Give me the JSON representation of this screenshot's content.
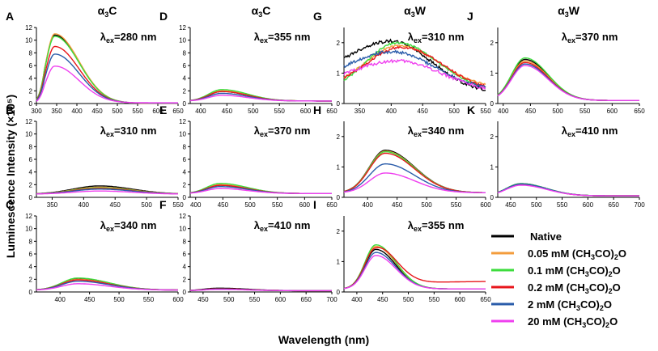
{
  "chart_data": {
    "type": "line",
    "xlabel": "Wavelength (nm)",
    "ylabel": "Luminescence Intensity (×10⁵)",
    "series_names": [
      "Native",
      "0.05 mM (CH3CO)2O",
      "0.1 mM (CH3CO)2O",
      "0.2 mM (CH3CO)2O",
      "2 mM (CH3CO)2O",
      "20 mM (CH3CO)2O"
    ],
    "series_colors": [
      "#000000",
      "#f39c3c",
      "#3ddc3d",
      "#e8161b",
      "#2a5caa",
      "#ef3fef"
    ],
    "column_titles": [
      {
        "base": "α",
        "sub": "3",
        "tail": "C"
      },
      {
        "base": "α",
        "sub": "3",
        "tail": "C"
      },
      {
        "base": "α",
        "sub": "3",
        "tail": "W"
      },
      {
        "base": "α",
        "sub": "3",
        "tail": "W"
      }
    ],
    "panels": [
      {
        "id": "A",
        "col": 0,
        "row": 0,
        "ex": "280",
        "xlim": [
          300,
          650
        ],
        "xticks": [
          300,
          350,
          400,
          450,
          500,
          550,
          600,
          650
        ],
        "ylim": [
          0,
          12
        ],
        "yticks": [
          0,
          2,
          4,
          6,
          8,
          10,
          12
        ],
        "shape": {
          "type": "gauss",
          "peak": 345,
          "wl": 30,
          "wr": 85
        },
        "amps": [
          10.8,
          11.0,
          10.6,
          9.0,
          7.8,
          5.9
        ],
        "tail": [
          0.05,
          0.05,
          0.05,
          0.05,
          0.08,
          0.12
        ]
      },
      {
        "id": "B",
        "col": 0,
        "row": 1,
        "ex": "310",
        "xlim": [
          325,
          550
        ],
        "xticks": [
          350,
          400,
          450,
          500,
          550
        ],
        "ylim": [
          0,
          12
        ],
        "yticks": [
          0,
          2,
          4,
          6,
          8,
          10,
          12
        ],
        "shape": {
          "type": "gauss",
          "peak": 425,
          "wl": 60,
          "wr": 75,
          "base": 0.5
        },
        "amps": [
          1.8,
          1.6,
          1.5,
          1.4,
          1.3,
          1.0
        ],
        "tail": [
          0,
          0,
          0,
          0,
          0,
          0
        ]
      },
      {
        "id": "C",
        "col": 0,
        "row": 2,
        "ex": "340",
        "xlim": [
          360,
          600
        ],
        "xticks": [
          400,
          450,
          500,
          550,
          600
        ],
        "ylim": [
          0,
          12
        ],
        "yticks": [
          0,
          2,
          4,
          6,
          8,
          10,
          12
        ],
        "shape": {
          "type": "gauss",
          "peak": 430,
          "wl": 38,
          "wr": 75,
          "base": 0.3
        },
        "amps": [
          2.1,
          2.0,
          2.2,
          1.9,
          1.7,
          1.3
        ],
        "tail": [
          0,
          0,
          0,
          0,
          0,
          0
        ]
      },
      {
        "id": "D",
        "col": 1,
        "row": 0,
        "ex": "355",
        "xlim": [
          380,
          650
        ],
        "xticks": [
          400,
          450,
          500,
          550,
          600,
          650
        ],
        "ylim": [
          0,
          12
        ],
        "yticks": [
          0,
          2,
          4,
          6,
          8,
          10,
          12
        ],
        "shape": {
          "type": "gauss",
          "peak": 440,
          "wl": 35,
          "wr": 70,
          "base": 0.4
        },
        "amps": [
          1.9,
          2.0,
          2.2,
          1.9,
          1.6,
          1.3
        ],
        "tail": [
          0,
          0,
          0,
          0,
          0,
          0
        ]
      },
      {
        "id": "E",
        "col": 1,
        "row": 1,
        "ex": "370",
        "xlim": [
          390,
          650
        ],
        "xticks": [
          400,
          450,
          500,
          550,
          600,
          650
        ],
        "ylim": [
          0,
          12
        ],
        "yticks": [
          0,
          2,
          4,
          6,
          8,
          10,
          12
        ],
        "shape": {
          "type": "gauss",
          "peak": 445,
          "wl": 35,
          "wr": 70,
          "base": 0.6
        },
        "amps": [
          1.9,
          2.0,
          2.2,
          1.9,
          1.7,
          1.4
        ],
        "tail": [
          0,
          0,
          0,
          0,
          0,
          0
        ]
      },
      {
        "id": "F",
        "col": 1,
        "row": 2,
        "ex": "410",
        "xlim": [
          425,
          700
        ],
        "xticks": [
          450,
          500,
          550,
          600,
          650,
          700
        ],
        "ylim": [
          0,
          12
        ],
        "yticks": [
          0,
          2,
          4,
          6,
          8,
          10,
          12
        ],
        "shape": {
          "type": "gauss",
          "peak": 480,
          "wl": 40,
          "wr": 80,
          "base": 0.2
        },
        "amps": [
          0.6,
          0.45,
          0.45,
          0.5,
          0.45,
          0.4
        ],
        "tail": [
          0,
          0,
          0,
          0,
          0,
          0
        ]
      },
      {
        "id": "G",
        "col": 2,
        "row": 0,
        "ex": "310",
        "xlim": [
          325,
          550
        ],
        "xticks": [
          350,
          400,
          450,
          500,
          550
        ],
        "ylim": [
          0,
          2.5
        ],
        "yticks": [
          0,
          1,
          2
        ],
        "shape": {
          "type": "broad"
        },
        "params": [
          {
            "a": 2.05,
            "p": 400,
            "wl": 120,
            "wr": 90,
            "b": 0.3,
            "n": 0.05
          },
          {
            "a": 1.9,
            "p": 412,
            "wl": 75,
            "wr": 90,
            "b": 0.5,
            "n": 0.03
          },
          {
            "a": 2.0,
            "p": 410,
            "wl": 70,
            "wr": 90,
            "b": 0.4,
            "n": 0.03
          },
          {
            "a": 1.85,
            "p": 418,
            "wl": 85,
            "wr": 90,
            "b": 0.4,
            "n": 0.04
          },
          {
            "a": 1.7,
            "p": 400,
            "wl": 110,
            "wr": 100,
            "b": 0.4,
            "n": 0.05
          },
          {
            "a": 1.4,
            "p": 410,
            "wl": 120,
            "wr": 100,
            "b": 0.3,
            "n": 0.05
          }
        ]
      },
      {
        "id": "H",
        "col": 2,
        "row": 1,
        "ex": "340",
        "xlim": [
          360,
          600
        ],
        "xticks": [
          400,
          450,
          500,
          550,
          600
        ],
        "ylim": [
          0,
          2.5
        ],
        "yticks": [
          0,
          1,
          2
        ],
        "shape": {
          "type": "gauss",
          "peak": 430,
          "wl": 38,
          "wr": 70,
          "base": 0.15
        },
        "amps": [
          1.55,
          1.52,
          1.5,
          1.45,
          1.1,
          0.8
        ],
        "tail": [
          0,
          0,
          0,
          0,
          0,
          0
        ]
      },
      {
        "id": "I",
        "col": 2,
        "row": 2,
        "ex": "355",
        "xlim": [
          375,
          650
        ],
        "xticks": [
          400,
          450,
          500,
          550,
          600,
          650
        ],
        "ylim": [
          0,
          2.5
        ],
        "yticks": [
          0,
          1,
          2
        ],
        "shape": {
          "type": "gauss",
          "peak": 437,
          "wl": 30,
          "wr": 55,
          "base": 0.1
        },
        "amps": [
          1.4,
          1.5,
          1.55,
          1.45,
          1.3,
          1.2
        ],
        "tail": [
          0,
          0,
          0,
          0.25,
          0,
          0
        ]
      },
      {
        "id": "J",
        "col": 3,
        "row": 0,
        "ex": "370",
        "xlim": [
          390,
          650
        ],
        "xticks": [
          400,
          450,
          500,
          550,
          600,
          650
        ],
        "ylim": [
          0,
          2.5
        ],
        "yticks": [
          0,
          1,
          2
        ],
        "shape": {
          "type": "gauss",
          "peak": 440,
          "wl": 35,
          "wr": 60,
          "base": 0.1
        },
        "amps": [
          1.45,
          1.4,
          1.5,
          1.35,
          1.3,
          1.25
        ],
        "tail": [
          0,
          0,
          0,
          0,
          0,
          0
        ]
      },
      {
        "id": "K",
        "col": 3,
        "row": 1,
        "ex": "410",
        "xlim": [
          425,
          700
        ],
        "xticks": [
          450,
          500,
          550,
          600,
          650,
          700
        ],
        "ylim": [
          0,
          2.5
        ],
        "yticks": [
          0,
          1,
          2
        ],
        "shape": {
          "type": "gauss",
          "peak": 470,
          "wl": 40,
          "wr": 70,
          "base": 0.05
        },
        "amps": [
          0.45,
          0.42,
          0.45,
          0.42,
          0.44,
          0.4
        ],
        "tail": [
          0,
          0,
          0,
          0,
          0,
          0
        ]
      }
    ],
    "annotation_prefix": "λ",
    "annotation_sub": "ex",
    "annotation_unit": "nm"
  },
  "legend": {
    "items": [
      {
        "label": "Native",
        "sub": "",
        "tail": ""
      },
      {
        "label": "0.05 mM (CH",
        "sub3": "3",
        "mid": "CO)",
        "sub2": "2",
        "end": "O"
      },
      {
        "label": "0.1 mM (CH",
        "sub3": "3",
        "mid": "CO)",
        "sub2": "2",
        "end": "O"
      },
      {
        "label": "0.2 mM (CH",
        "sub3": "3",
        "mid": "CO)",
        "sub2": "2",
        "end": "O"
      },
      {
        "label": "2 mM (CH",
        "sub3": "3",
        "mid": "CO)",
        "sub2": "2",
        "end": "O"
      },
      {
        "label": "20 mM (CH",
        "sub3": "3",
        "mid": "CO)",
        "sub2": "2",
        "end": "O"
      }
    ]
  }
}
